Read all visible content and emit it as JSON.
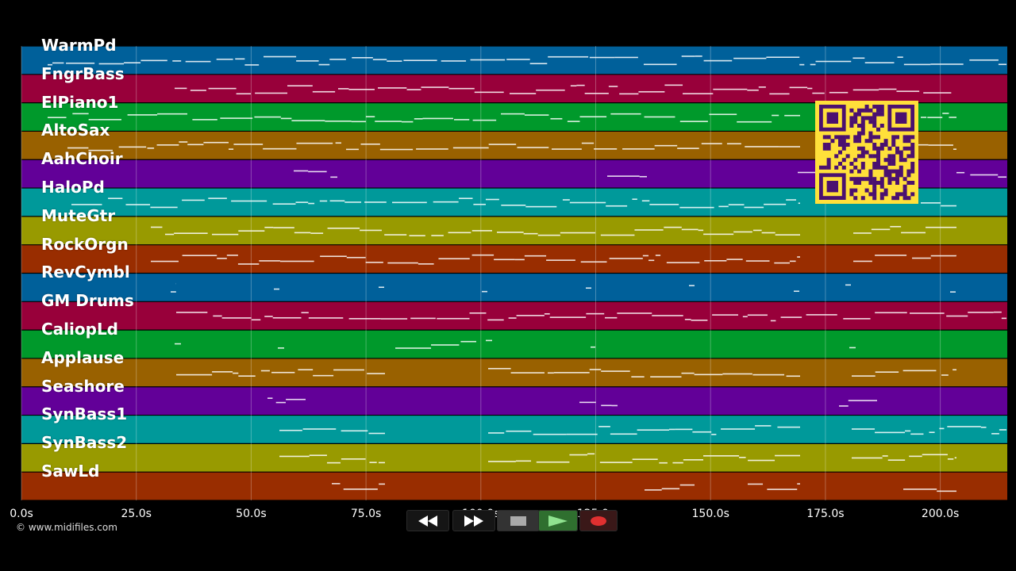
{
  "tracks": [
    {
      "name": "WarmPd",
      "color": "#00609a"
    },
    {
      "name": "FngrBass",
      "color": "#98003a"
    },
    {
      "name": "ElPiano1",
      "color": "#00992b"
    },
    {
      "name": "AltoSax",
      "color": "#996100"
    },
    {
      "name": "AahChoir",
      "color": "#620098"
    },
    {
      "name": "HaloPd",
      "color": "#00999a"
    },
    {
      "name": "MuteGtr",
      "color": "#989a00"
    },
    {
      "name": "RockOrgn",
      "color": "#992d00"
    },
    {
      "name": "RevCymbl",
      "color": "#00609a"
    },
    {
      "name": "GM Drums",
      "color": "#98003a"
    },
    {
      "name": "CaliopLd",
      "color": "#00992b"
    },
    {
      "name": "Applause",
      "color": "#996100"
    },
    {
      "name": "Seashore",
      "color": "#620098"
    },
    {
      "name": "SynBass1",
      "color": "#00999a"
    },
    {
      "name": "SynBass2",
      "color": "#989a00"
    },
    {
      "name": "SawLd",
      "color": "#992d00"
    }
  ],
  "timeline": {
    "ticks": [
      "0.0s",
      "25.0s",
      "50.0s",
      "75.0s",
      "100.0s",
      "125.0s",
      "150.0s",
      "175.0s",
      "200.0s"
    ]
  },
  "transport": {
    "rewind_icon": "rewind-icon",
    "forward_icon": "fast-forward-icon",
    "stop_icon": "stop-icon",
    "play_icon": "play-icon",
    "record_icon": "record-icon"
  },
  "footer": {
    "copyright": "© www.midifiles.com"
  },
  "colors": {
    "qr_bg": "#ffe03a",
    "qr_fg": "#4a1070",
    "grid": "#ffffff",
    "note": "#ffffff"
  }
}
